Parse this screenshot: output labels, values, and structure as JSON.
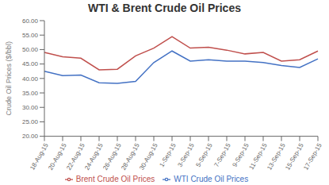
{
  "chart_data": {
    "type": "line",
    "title": "WTI & Brent Crude Oil Prices",
    "y_label": "Crude Oil Prices ($/bbl)",
    "categories": [
      "18-Aug-15",
      "20-Aug-15",
      "22-Aug-15",
      "24-Aug-15",
      "26-Aug-15",
      "28-Aug-15",
      "30-Aug-15",
      "1-Sep-15",
      "3-Sep-15",
      "5-Sep-15",
      "7-Sep-15",
      "9-Sep-15",
      "11-Sep-15",
      "13-Sep-15",
      "15-Sep-15",
      "17-Sep-15"
    ],
    "series": [
      {
        "name": "WTI Crude Oil Prices",
        "color": "#4472C4",
        "values": [
          42.5,
          41.0,
          41.2,
          38.5,
          38.3,
          39.0,
          45.5,
          49.5,
          46.0,
          46.5,
          46.0,
          46.0,
          45.5,
          44.5,
          43.8,
          46.8
        ]
      },
      {
        "name": "Brent Crude Oil Prices",
        "color": "#C0504D",
        "values": [
          49.0,
          47.5,
          47.0,
          43.0,
          43.2,
          47.8,
          50.5,
          54.5,
          50.5,
          50.8,
          49.8,
          48.5,
          49.0,
          46.0,
          46.5,
          49.5
        ]
      }
    ],
    "ylim": [
      20.0,
      60.0
    ],
    "yticks": [
      {
        "value": 20.0,
        "label": "20.00"
      },
      {
        "value": 25.0,
        "label": "25.00"
      },
      {
        "value": 30.0,
        "label": "30.00"
      },
      {
        "value": 35.0,
        "label": "35.00"
      },
      {
        "value": 40.0,
        "label": "40.00"
      },
      {
        "value": 45.0,
        "label": "45.00"
      },
      {
        "value": 50.0,
        "label": "50.00"
      },
      {
        "value": 55.0,
        "label": "55.00"
      },
      {
        "value": 60.0,
        "label": "60.00"
      }
    ],
    "grid": false,
    "legend": "bottom"
  }
}
